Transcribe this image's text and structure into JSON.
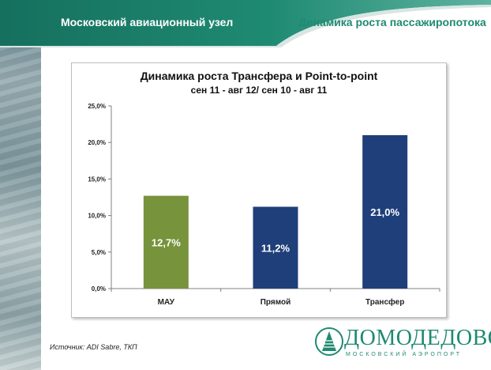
{
  "header": {
    "left_title": "Московский авиационный узел",
    "right_title": "Динамика роста пассажиропотока"
  },
  "colors": {
    "teal": "#1f8a72",
    "mau_bar": "#77933c",
    "navy_bar": "#1f3f7a"
  },
  "chart_data": {
    "type": "bar",
    "title": "Динамика роста Трансфера и Point-to-point",
    "subtitle": "сен 11 - авг 12/ сен 10 - авг 11",
    "categories": [
      "МАУ",
      "Прямой",
      "Трансфер"
    ],
    "values": [
      12.7,
      11.2,
      21.0
    ],
    "data_labels": [
      "12,7%",
      "11,2%",
      "21,0%"
    ],
    "bar_colors": [
      "#77933c",
      "#1f3f7a",
      "#1f3f7a"
    ],
    "ylim": [
      0,
      25
    ],
    "yticks": [
      0,
      5,
      10,
      15,
      20,
      25
    ],
    "ytick_labels": [
      "0,0%",
      "5,0%",
      "10,0%",
      "15,0%",
      "20,0%",
      "25,0%"
    ],
    "xlabel": "",
    "ylabel": "",
    "grid": false,
    "legend": "none"
  },
  "footer": {
    "source": "Источник: ADI Sabre, ТКП"
  },
  "logo": {
    "name": "ДОМОДЕДОВО",
    "subtitle": "МОСКОВСКИЙ АЭРОПОРТ"
  }
}
